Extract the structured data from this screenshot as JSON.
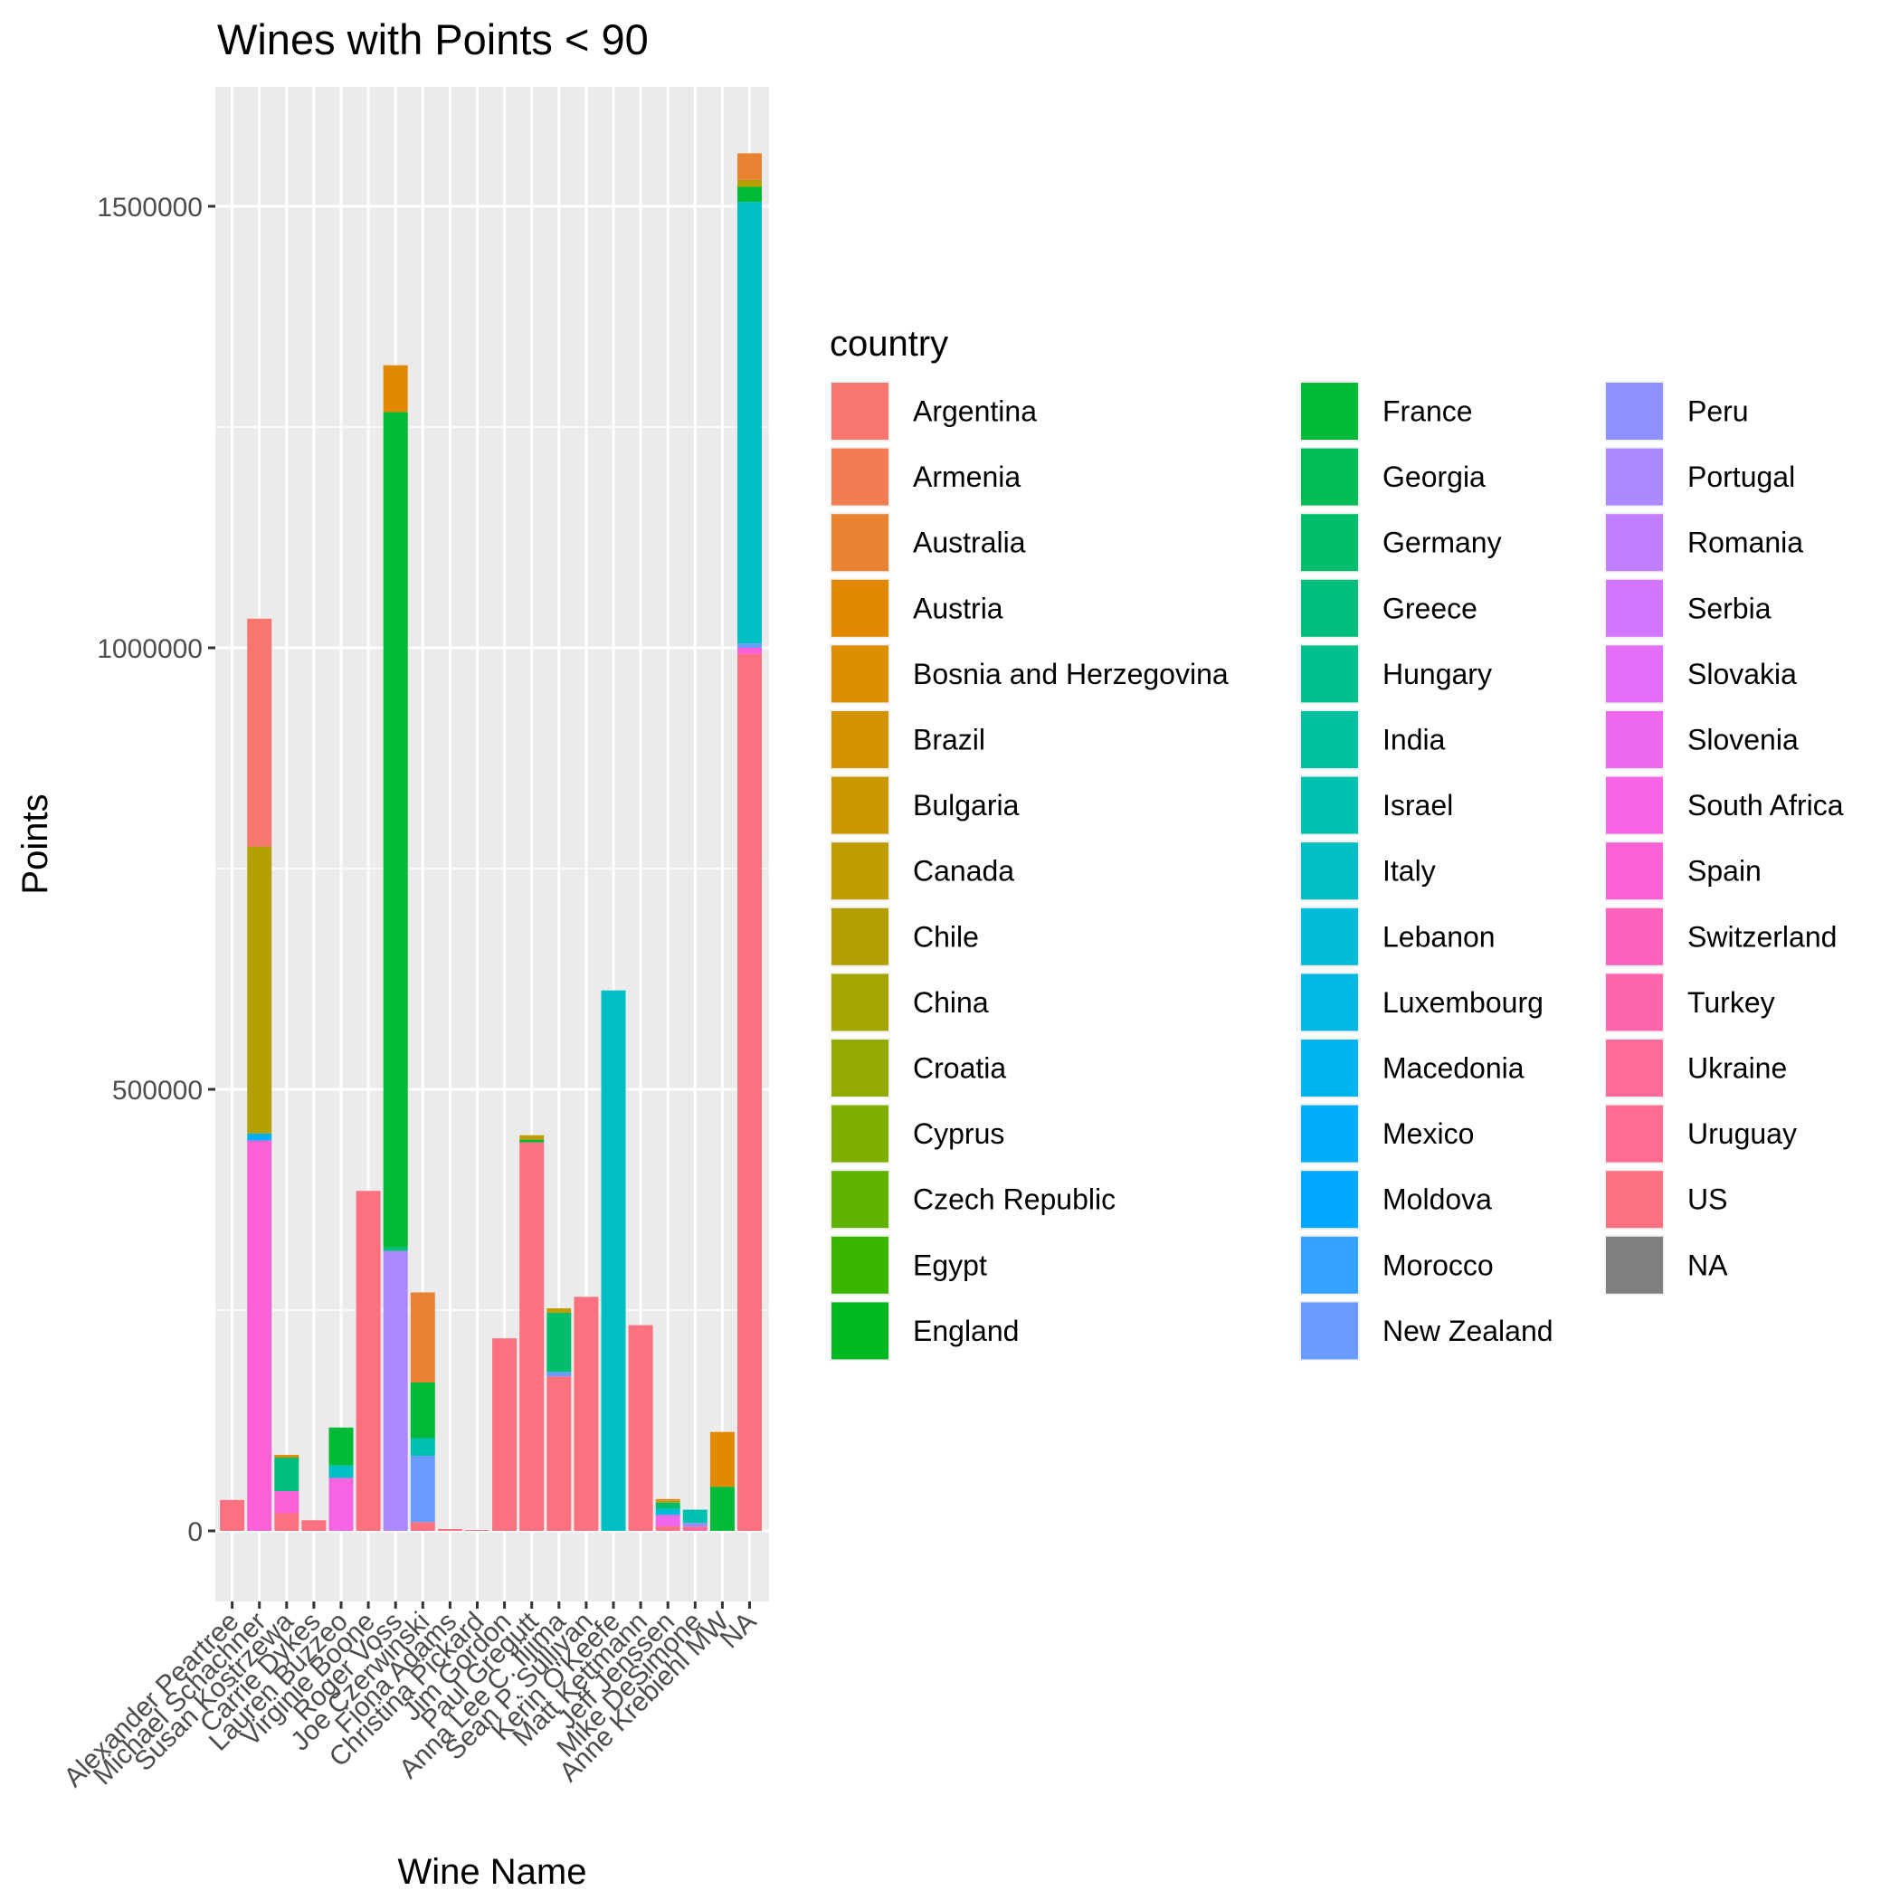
{
  "chart_data": {
    "type": "bar",
    "stacked": true,
    "title": "Wines with Points < 90",
    "xlabel": "Wine Name",
    "ylabel": "Points",
    "ylim": [
      -75000,
      1630000
    ],
    "yticks": [
      0,
      500000,
      1000000,
      1500000
    ],
    "ytick_labels": [
      "0",
      "500000",
      "1000000",
      "1500000"
    ],
    "grid": true,
    "legend": {
      "title": "country",
      "placement": "right",
      "columns": 3,
      "entries": [
        {
          "name": "Argentina",
          "color": "#F8766D"
        },
        {
          "name": "Armenia",
          "color": "#F27D52"
        },
        {
          "name": "Australia",
          "color": "#EA8331"
        },
        {
          "name": "Austria",
          "color": "#E38900"
        },
        {
          "name": "Bosnia and Herzegovina",
          "color": "#DB8E00"
        },
        {
          "name": "Brazil",
          "color": "#D39200"
        },
        {
          "name": "Bulgaria",
          "color": "#C99800"
        },
        {
          "name": "Canada",
          "color": "#BF9C00"
        },
        {
          "name": "Chile",
          "color": "#B3A000"
        },
        {
          "name": "China",
          "color": "#A3A500"
        },
        {
          "name": "Croatia",
          "color": "#93AA00"
        },
        {
          "name": "Cyprus",
          "color": "#7DAE00"
        },
        {
          "name": "Czech Republic",
          "color": "#5EB300"
        },
        {
          "name": "Egypt",
          "color": "#39B600"
        },
        {
          "name": "England",
          "color": "#00B81F"
        },
        {
          "name": "France",
          "color": "#00BA38"
        },
        {
          "name": "Georgia",
          "color": "#00BC56"
        },
        {
          "name": "Germany",
          "color": "#00BE6C"
        },
        {
          "name": "Greece",
          "color": "#00BF7D"
        },
        {
          "name": "Hungary",
          "color": "#00C08E"
        },
        {
          "name": "India",
          "color": "#00C19F"
        },
        {
          "name": "Israel",
          "color": "#00C0AF"
        },
        {
          "name": "Italy",
          "color": "#00BFC4"
        },
        {
          "name": "Lebanon",
          "color": "#00BCD8"
        },
        {
          "name": "Luxembourg",
          "color": "#00B9E3"
        },
        {
          "name": "Macedonia",
          "color": "#00B4EF"
        },
        {
          "name": "Mexico",
          "color": "#00AEF9"
        },
        {
          "name": "Moldova",
          "color": "#00A9FF"
        },
        {
          "name": "Morocco",
          "color": "#35A2FF"
        },
        {
          "name": "New Zealand",
          "color": "#6A9BFF"
        },
        {
          "name": "Peru",
          "color": "#8F91FF"
        },
        {
          "name": "Portugal",
          "color": "#AC88FF"
        },
        {
          "name": "Romania",
          "color": "#C17FFF"
        },
        {
          "name": "Serbia",
          "color": "#D376FF"
        },
        {
          "name": "Slovakia",
          "color": "#E26EF7"
        },
        {
          "name": "Slovenia",
          "color": "#ED68ED"
        },
        {
          "name": "South Africa",
          "color": "#F564E3"
        },
        {
          "name": "Spain",
          "color": "#FB61D7"
        },
        {
          "name": "Switzerland",
          "color": "#FF62BC"
        },
        {
          "name": "Turkey",
          "color": "#FF65AE"
        },
        {
          "name": "Ukraine",
          "color": "#FF6A98"
        },
        {
          "name": "Uruguay",
          "color": "#FF6C91"
        },
        {
          "name": "US",
          "color": "#FC717F"
        },
        {
          "name": "NA",
          "color": "#7F7F7F"
        }
      ]
    },
    "categories": [
      "Alexander Peartree",
      "Michael Schachner",
      "Susan Kostrzewa",
      "Carrie Dykes",
      "Lauren Buzzeo",
      "Virginie Boone",
      "Roger Voss",
      "Joe Czerwinski",
      "Fiona Adams",
      "Christina Pickard",
      "Jim Gordon",
      "Paul Gregutt",
      "Anna Lee C. Iijima",
      "Sean P. Sullivan",
      "Kerin O'Keefe",
      "Matt Kettmann",
      "Jeff Jenssen",
      "Mike DeSimone",
      "Anne Krebiehl MW",
      "NA"
    ],
    "stacks": [
      [
        {
          "country": "US",
          "value": 35000
        }
      ],
      [
        {
          "country": "Spain",
          "value": 442000
        },
        {
          "country": "Mexico",
          "value": 8000
        },
        {
          "country": "Chile",
          "value": 325000
        },
        {
          "country": "Argentina",
          "value": 258000
        }
      ],
      [
        {
          "country": "US",
          "value": 20000
        },
        {
          "country": "Spain",
          "value": 25000
        },
        {
          "country": "Greece",
          "value": 38000
        },
        {
          "country": "Austria",
          "value": 3000
        }
      ],
      [
        {
          "country": "US",
          "value": 12000
        }
      ],
      [
        {
          "country": "South Africa",
          "value": 60000
        },
        {
          "country": "Italy",
          "value": 14000
        },
        {
          "country": "France",
          "value": 43000
        }
      ],
      [
        {
          "country": "US",
          "value": 385000
        }
      ],
      [
        {
          "country": "Portugal",
          "value": 317000
        },
        {
          "country": "Greece",
          "value": 4000
        },
        {
          "country": "France",
          "value": 946000
        },
        {
          "country": "Austria",
          "value": 53000
        }
      ],
      [
        {
          "country": "US",
          "value": 10000
        },
        {
          "country": "New Zealand",
          "value": 75000
        },
        {
          "country": "Israel",
          "value": 20000
        },
        {
          "country": "France",
          "value": 63000
        },
        {
          "country": "Australia",
          "value": 102000
        }
      ],
      [
        {
          "country": "US",
          "value": 2000
        }
      ],
      [
        {
          "country": "US",
          "value": 1000
        }
      ],
      [
        {
          "country": "US",
          "value": 218000
        }
      ],
      [
        {
          "country": "US",
          "value": 440000
        },
        {
          "country": "France",
          "value": 3000
        },
        {
          "country": "Canada",
          "value": 5000
        }
      ],
      [
        {
          "country": "US",
          "value": 175000
        },
        {
          "country": "New Zealand",
          "value": 5000
        },
        {
          "country": "Germany",
          "value": 67000
        },
        {
          "country": "Canada",
          "value": 5000
        }
      ],
      [
        {
          "country": "US",
          "value": 265000
        }
      ],
      [
        {
          "country": "Italy",
          "value": 612000
        }
      ],
      [
        {
          "country": "US",
          "value": 233000
        }
      ],
      [
        {
          "country": "US",
          "value": 5000
        },
        {
          "country": "Slovenia",
          "value": 13000
        },
        {
          "country": "Lebanon",
          "value": 7000
        },
        {
          "country": "Germany",
          "value": 7000
        },
        {
          "country": "Chile",
          "value": 2000
        },
        {
          "country": "Austria",
          "value": 2000
        }
      ],
      [
        {
          "country": "Ukraine",
          "value": 5000
        },
        {
          "country": "Peru",
          "value": 4000
        },
        {
          "country": "Israel",
          "value": 15000
        }
      ],
      [
        {
          "country": "France",
          "value": 50000
        },
        {
          "country": "Austria",
          "value": 62000
        }
      ],
      [
        {
          "country": "US",
          "value": 993000
        },
        {
          "country": "Spain",
          "value": 7000
        },
        {
          "country": "New Zealand",
          "value": 5000
        },
        {
          "country": "Italy",
          "value": 500000
        },
        {
          "country": "France",
          "value": 17000
        },
        {
          "country": "Chile",
          "value": 8000
        },
        {
          "country": "Australia",
          "value": 30000
        }
      ]
    ]
  }
}
